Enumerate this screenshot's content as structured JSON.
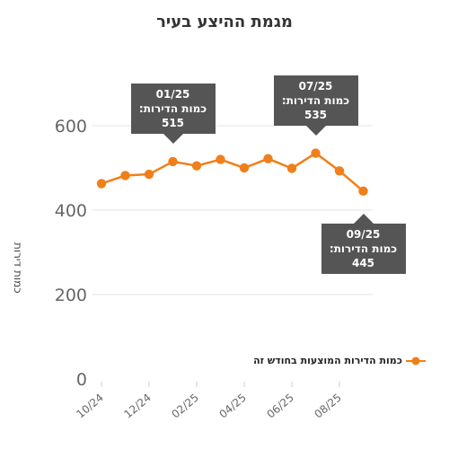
{
  "chart_data": {
    "type": "line",
    "title": "מגמת ההיצע בעיר",
    "xlabel": "",
    "ylabel": "כמות דירות",
    "x": [
      "10/24",
      "11/24",
      "12/24",
      "01/25",
      "02/25",
      "03/25",
      "04/25",
      "05/25",
      "06/25",
      "07/25",
      "08/25",
      "09/25"
    ],
    "x_tick_labels": [
      "10/24",
      "12/24",
      "02/25",
      "04/25",
      "06/25",
      "08/25"
    ],
    "y_ticks": [
      0,
      200,
      400,
      600
    ],
    "ylim": [
      0,
      640
    ],
    "grid": true,
    "legend_position": "right",
    "series": [
      {
        "name": "כמות הדירות המוצעות בחודש זה",
        "color": "#f07f19",
        "values": [
          463,
          482,
          485,
          515,
          505,
          520,
          500,
          522,
          499,
          535,
          493,
          445
        ]
      }
    ],
    "annotations": [
      {
        "x": "01/25",
        "label": "כמות הדירות:",
        "value": "515",
        "placement": "above"
      },
      {
        "x": "07/25",
        "label": "כמות הדירות:",
        "value": "535",
        "placement": "above"
      },
      {
        "x": "09/25",
        "label": "כמות הדירות:",
        "value": "445",
        "placement": "below"
      }
    ]
  }
}
